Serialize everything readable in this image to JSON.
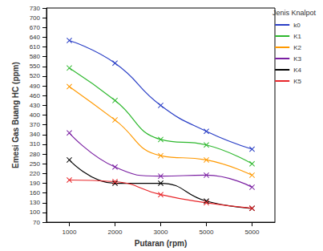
{
  "chart_data": {
    "type": "line",
    "x_label": "Putaran (rpm)",
    "y_label": "Emesi Gas Buang HC (ppm)",
    "legend_title": "Jenis Knalpot",
    "categories": [
      "1000",
      "2000",
      "3000",
      "5000",
      "5000"
    ],
    "series": [
      {
        "name": "k0",
        "color": "#2a3fc6",
        "values": [
          630,
          560,
          430,
          350,
          295
        ]
      },
      {
        "name": "K1",
        "color": "#2eb82e",
        "values": [
          545,
          445,
          325,
          308,
          250
        ]
      },
      {
        "name": "K2",
        "color": "#ff9900",
        "values": [
          488,
          385,
          275,
          262,
          215
        ]
      },
      {
        "name": "K3",
        "color": "#7a1fa2",
        "values": [
          345,
          240,
          212,
          215,
          178
        ]
      },
      {
        "name": "K4",
        "color": "#000000",
        "values": [
          262,
          190,
          190,
          135,
          113
        ]
      },
      {
        "name": "K5",
        "color": "#e8262a",
        "values": [
          200,
          195,
          155,
          130,
          113
        ]
      }
    ],
    "ylim": [
      70,
      730
    ],
    "yticks": [
      70,
      100,
      130,
      160,
      190,
      220,
      250,
      280,
      310,
      340,
      370,
      400,
      430,
      460,
      490,
      520,
      550,
      580,
      610,
      640,
      670,
      700,
      730
    ],
    "grid": false,
    "legend": "right",
    "marker": "x",
    "line_style": "smooth"
  }
}
